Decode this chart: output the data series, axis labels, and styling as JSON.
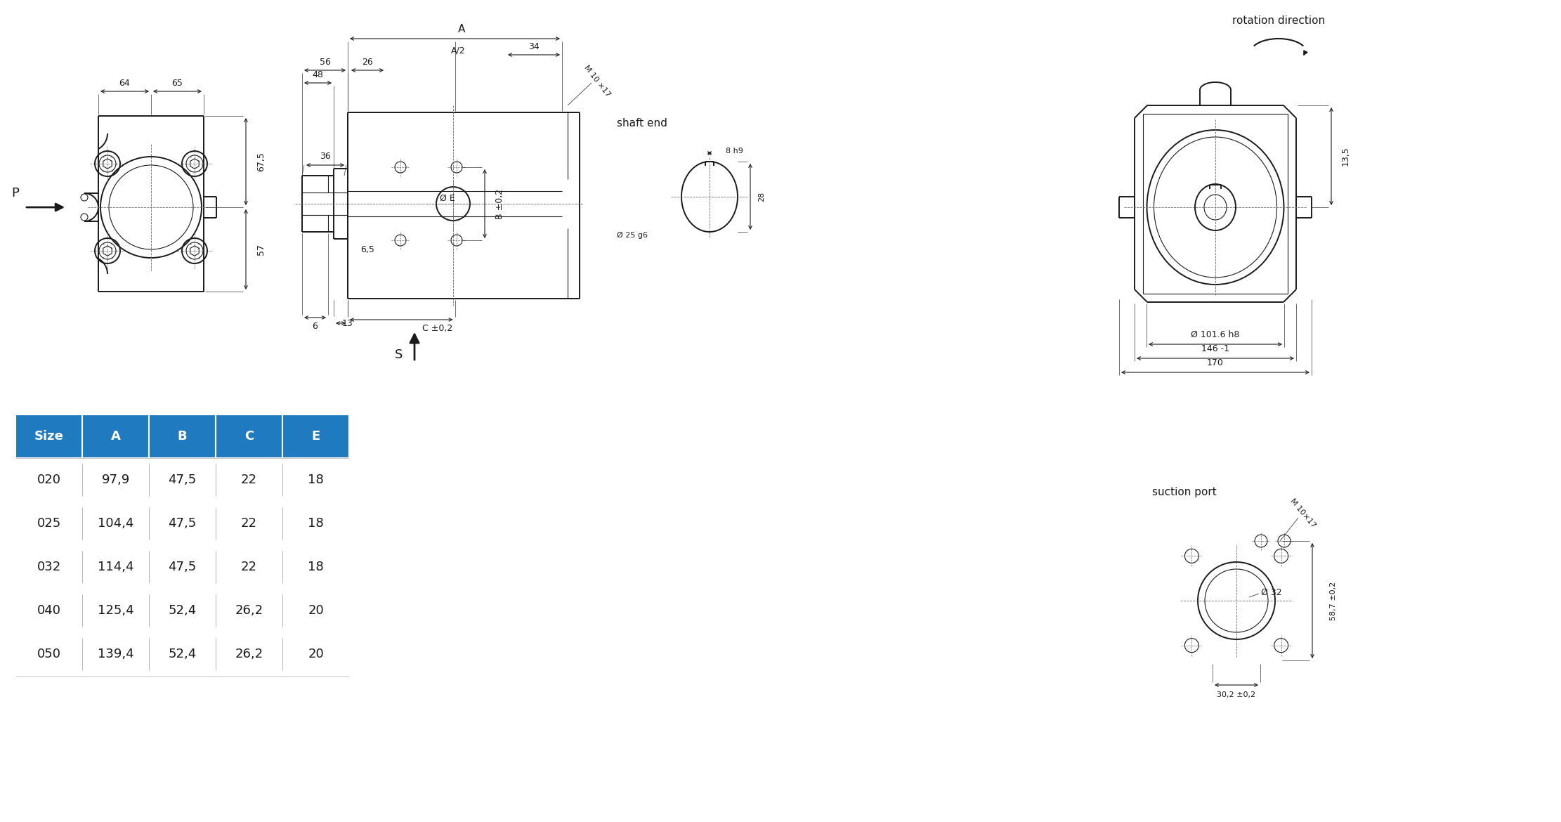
{
  "bg_color": "#ffffff",
  "line_color": "#1a1a1a",
  "table_header_color": "#1f7abf",
  "table_header_text": "#ffffff",
  "table_text_color": "#1a1a1a",
  "table_data": [
    [
      "Size",
      "A",
      "B",
      "C",
      "E"
    ],
    [
      "020",
      "97,9",
      "47,5",
      "22",
      "18"
    ],
    [
      "025",
      "104,4",
      "47,5",
      "22",
      "18"
    ],
    [
      "032",
      "114,4",
      "47,5",
      "22",
      "18"
    ],
    [
      "040",
      "125,4",
      "52,4",
      "26,2",
      "20"
    ],
    [
      "050",
      "139,4",
      "52,4",
      "26,2",
      "20"
    ]
  ],
  "rotation_direction_label": "rotation direction",
  "shaft_end_label": "shaft end",
  "suction_port_label": "suction port",
  "front_dims": {
    "d64": "64",
    "d65": "65",
    "d675": "67,5",
    "d57": "57",
    "port": "P"
  },
  "side_dims": {
    "dA": "A",
    "d34": "34",
    "d56": "56",
    "d48": "48",
    "d26": "26",
    "dA2": "A/2",
    "d36": "36",
    "d65": "6,5",
    "d6": "6",
    "d13": "13",
    "dM10": "M 10 ×17",
    "dphiE": "Ø E",
    "dB": "B ±0,2",
    "dC": "C ±0,2",
    "dS": "S"
  },
  "shaft_dims": {
    "d8h9": "8 h9",
    "d28": "28",
    "d25g6": "Ø 25 g6"
  },
  "right_dims": {
    "d135": "13,5",
    "d1016": "Ø 101.6 h8",
    "d146": "146 -1",
    "d170": "170"
  },
  "suct_dims": {
    "dM10": "M 10×17",
    "d32": "Ø 32",
    "d587": "58,7 ±0,2",
    "d302": "30,2 ±0,2"
  }
}
